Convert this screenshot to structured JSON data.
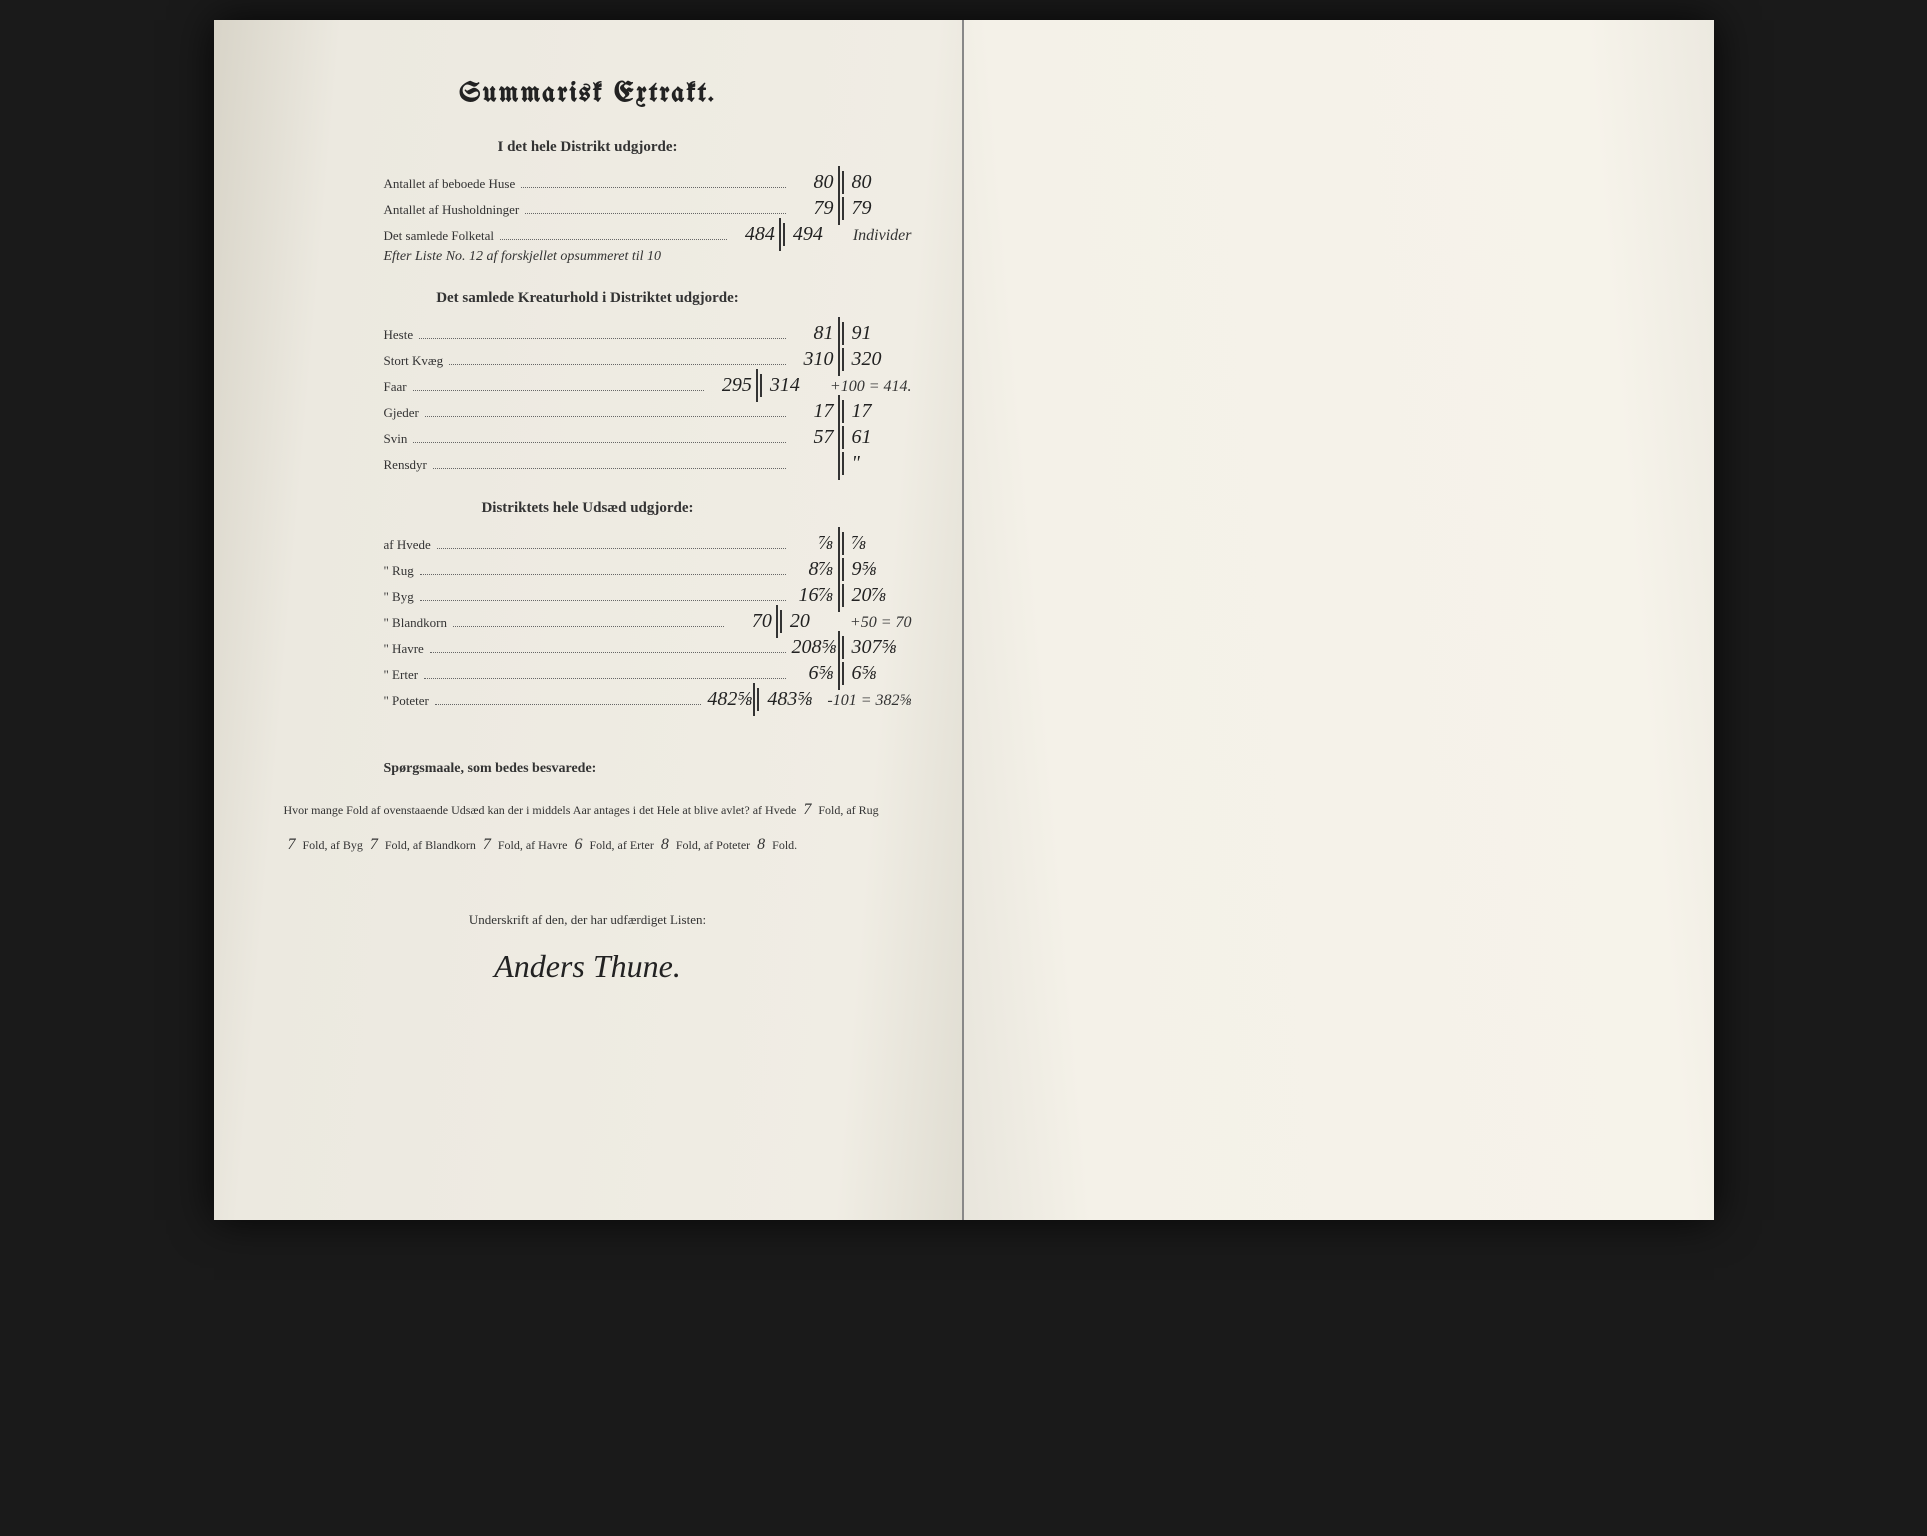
{
  "title": "Summarisk Extrakt.",
  "section1": {
    "heading": "I det hele Distrikt udgjorde:",
    "rows": [
      {
        "label": "Antallet af beboede Huse",
        "v1": "80",
        "v2": "80",
        "note": ""
      },
      {
        "label": "Antallet af Husholdninger",
        "v1": "79",
        "v2": "79",
        "note": ""
      },
      {
        "label": "Det samlede Folketal",
        "v1": "484",
        "v2": "494",
        "note": "Individer"
      }
    ],
    "extra_note": "Efter Liste No. 12 af forskjellet opsummeret til 10"
  },
  "section2": {
    "heading": "Det samlede Kreaturhold i Distriktet udgjorde:",
    "rows": [
      {
        "label": "Heste",
        "v1": "81",
        "v2": "91",
        "note": ""
      },
      {
        "label": "Stort Kvæg",
        "v1": "310",
        "v2": "320",
        "note": ""
      },
      {
        "label": "Faar",
        "v1": "295",
        "v2": "314",
        "note": "+100 = 414."
      },
      {
        "label": "Gjeder",
        "v1": "17",
        "v2": "17",
        "note": ""
      },
      {
        "label": "Svin",
        "v1": "57",
        "v2": "61",
        "note": ""
      },
      {
        "label": "Rensdyr",
        "v1": "",
        "v2": "\"",
        "note": ""
      }
    ]
  },
  "section3": {
    "heading": "Distriktets hele Udsæd udgjorde:",
    "rows": [
      {
        "label": "af Hvede",
        "v1": "⅞",
        "v2": "⅞",
        "note": ""
      },
      {
        "label": "\" Rug",
        "v1": "8⅞",
        "v2": "9⅝",
        "note": ""
      },
      {
        "label": "\" Byg",
        "v1": "16⅞",
        "v2": "20⅞",
        "note": ""
      },
      {
        "label": "\" Blandkorn",
        "v1": "70",
        "v2": "20",
        "note": "+50 = 70"
      },
      {
        "label": "\" Havre",
        "v1": "208⅝",
        "v2": "307⅝",
        "note": ""
      },
      {
        "label": "\" Erter",
        "v1": "6⅝",
        "v2": "6⅝",
        "note": ""
      },
      {
        "label": "\" Poteter",
        "v1": "482⅝",
        "v2": "483⅝",
        "note": "-101 = 382⅝"
      }
    ]
  },
  "questions": {
    "heading": "Spørgsmaale, som bedes besvarede:",
    "intro": "Hvor mange Fold af ovenstaaende Udsæd kan der i middels Aar antages i det Hele at blive avlet?",
    "items": [
      {
        "label": "af Hvede",
        "value": "7",
        "unit": "Fold,"
      },
      {
        "label": "af Rug",
        "value": "7",
        "unit": "Fold,"
      },
      {
        "label": "af Byg",
        "value": "7",
        "unit": "Fold,"
      },
      {
        "label": "af Blandkorn",
        "value": "7",
        "unit": "Fold,"
      },
      {
        "label": "af Havre",
        "value": "6",
        "unit": "Fold,"
      },
      {
        "label": "af Erter",
        "value": "8",
        "unit": "Fold,"
      },
      {
        "label": "af Poteter",
        "value": "8",
        "unit": "Fold."
      }
    ]
  },
  "signature": {
    "heading": "Underskrift af den, der har udfærdiget Listen:",
    "name": "Anders Thune."
  }
}
